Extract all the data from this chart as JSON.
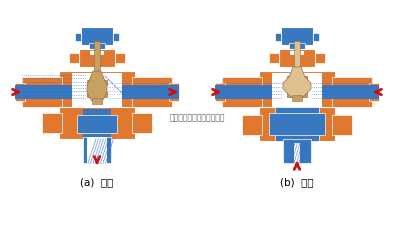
{
  "bg": "#FFFFFF",
  "orange": "#E07830",
  "blue": "#3878C0",
  "tan": "#C8A060",
  "tan_light": "#E0C090",
  "white": "#FFFFFF",
  "red": "#CC1111",
  "blue_dot": "#3060C0",
  "label_a": "(a)  分流",
  "label_b": "(b)  合流",
  "watermark": "多仪阀门（上海）有限公司"
}
